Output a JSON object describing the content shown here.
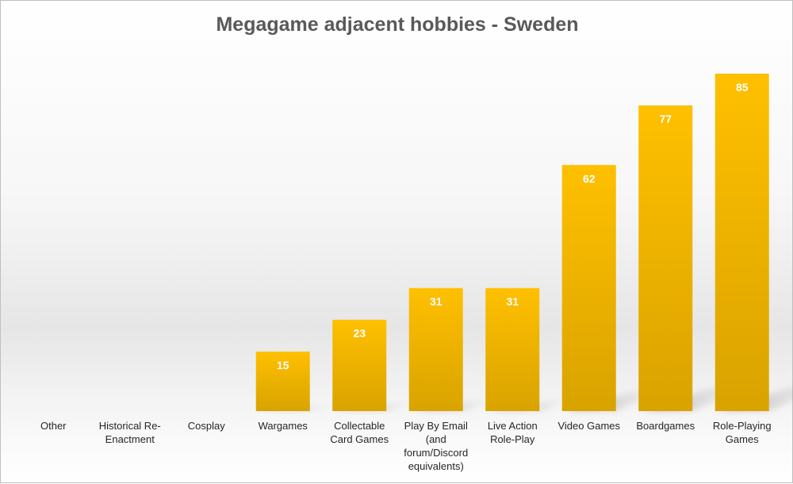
{
  "chart_data": {
    "type": "bar",
    "title": "Megagame adjacent hobbies - Sweden",
    "xlabel": "",
    "ylabel": "",
    "ylim": [
      0,
      85
    ],
    "grid": false,
    "legend": "none",
    "categories": [
      "Other",
      "Historical Re-Enactment",
      "Cosplay",
      "Wargames",
      "Collectable Card Games",
      "Play By Email (and forum/Discord equivalents)",
      "Live Action Role-Play",
      "Video Games",
      "Boardgames",
      "Role-Playing Games"
    ],
    "values": [
      0,
      0,
      0,
      15,
      23,
      31,
      31,
      62,
      77,
      85
    ],
    "data_labels": [
      "",
      "",
      "",
      "15",
      "23",
      "31",
      "31",
      "62",
      "77",
      "85"
    ],
    "colors": {
      "bar_top": "#ffc000",
      "bar_bottom": "#d9a300",
      "label": "#ffffff",
      "shadow": "#8c8c8c"
    }
  }
}
